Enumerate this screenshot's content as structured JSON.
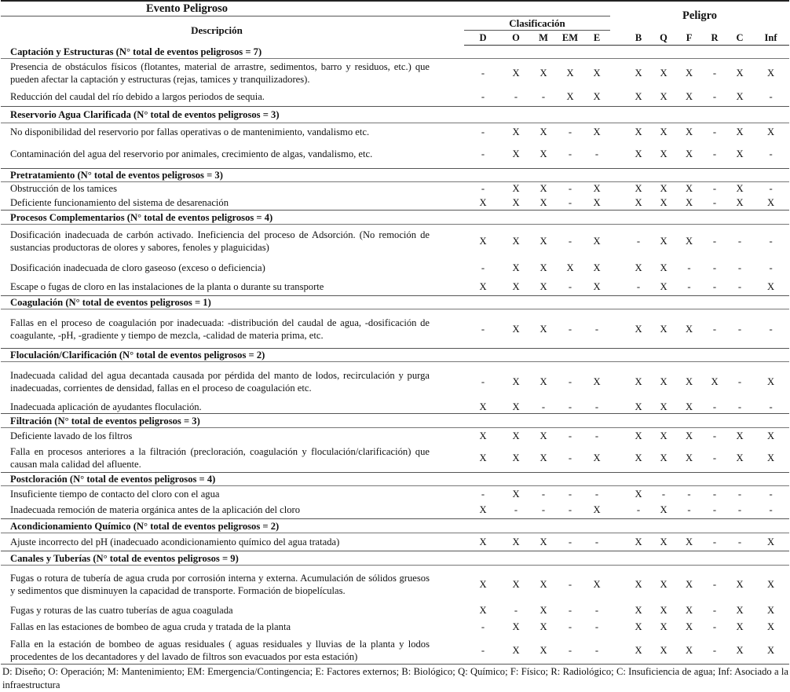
{
  "header": {
    "evento": "Evento Peligroso",
    "descripcion": "Descripción",
    "clasificacion": "Clasificación",
    "peligro": "Peligro",
    "class_codes": [
      "D",
      "O",
      "M",
      "EM",
      "E"
    ],
    "hazard_codes": [
      "B",
      "Q",
      "F",
      "R",
      "C",
      "Inf"
    ]
  },
  "sections": [
    {
      "title": "Captación y Estructuras (N° total de eventos peligrosos = 7)",
      "rows": [
        {
          "desc": "Presencia de obstáculos físicos (flotantes, material de arrastre, sedimentos, barro y residuos, etc.) que pueden afectar la captación y estructuras (rejas, tamices y tranquilizadores).",
          "marks": [
            "-",
            "X",
            "X",
            "X",
            "X",
            "X",
            "X",
            "X",
            "-",
            "X",
            "X"
          ]
        },
        {
          "desc": "Reducción del caudal del río debido a largos periodos de sequia.",
          "marks": [
            "-",
            "-",
            "-",
            "X",
            "X",
            "X",
            "X",
            "X",
            "-",
            "X",
            "-"
          ]
        }
      ]
    },
    {
      "title": "Reservorio Agua Clarificada (N° total de eventos peligrosos = 3)",
      "rows": [
        {
          "desc": "No disponibilidad del reservorio por fallas operativas o de mantenimiento, vandalismo etc.",
          "marks": [
            "-",
            "X",
            "X",
            "-",
            "X",
            "X",
            "X",
            "X",
            "-",
            "X",
            "X"
          ]
        },
        {
          "desc": "Contaminación del agua del reservorio por animales, crecimiento de algas, vandalismo, etc.",
          "marks": [
            "-",
            "X",
            "X",
            "-",
            "-",
            "X",
            "X",
            "X",
            "-",
            "X",
            "-"
          ]
        }
      ]
    },
    {
      "title": "Pretratamiento (N° total de eventos peligrosos = 3)",
      "rows": [
        {
          "desc": "Obstrucción de los tamices",
          "marks": [
            "-",
            "X",
            "X",
            "-",
            "X",
            "X",
            "X",
            "X",
            "-",
            "X",
            "-"
          ]
        },
        {
          "desc": "Deficiente funcionamiento del sistema de desarenación",
          "marks": [
            "X",
            "X",
            "X",
            "-",
            "X",
            "X",
            "X",
            "X",
            "-",
            "X",
            "X"
          ]
        }
      ]
    },
    {
      "title": "Procesos Complementarios (N° total de eventos peligrosos = 4)",
      "rows": [
        {
          "desc": "Dosificación inadecuada de carbón activado. Ineficiencia del proceso de Adsorción. (No remoción de sustancias productoras de olores y sabores, fenoles y plaguicidas)",
          "marks": [
            "X",
            "X",
            "X",
            "-",
            "X",
            "-",
            "X",
            "X",
            "-",
            "-",
            "-"
          ]
        },
        {
          "desc": "Dosificación inadecuada de cloro gaseoso (exceso o deficiencia)",
          "marks": [
            "-",
            "X",
            "X",
            "X",
            "X",
            "X",
            "X",
            "-",
            "-",
            "-",
            "-"
          ]
        },
        {
          "desc": "Escape o fugas de cloro en las instalaciones de la planta o durante su transporte",
          "marks": [
            "X",
            "X",
            "X",
            "-",
            "X",
            "-",
            "X",
            "-",
            "-",
            "-",
            "X"
          ]
        }
      ]
    },
    {
      "title": "Coagulación (N° total de eventos peligrosos = 1)",
      "rows": [
        {
          "desc": "Fallas en el proceso de coagulación por inadecuada: -distribución del caudal de agua, -dosificación de coagulante, -pH, -gradiente y tiempo de mezcla, -calidad de materia prima, etc.",
          "marks": [
            "-",
            "X",
            "X",
            "-",
            "-",
            "X",
            "X",
            "X",
            "-",
            "-",
            "-"
          ]
        }
      ]
    },
    {
      "title": "Floculación/Clarificación (N° total de eventos peligrosos = 2)",
      "rows": [
        {
          "desc": "Inadecuada calidad del agua decantada  causada por pérdida del manto de lodos, recirculación y purga inadecuadas, corrientes de densidad, fallas en el proceso de coagulación etc.",
          "marks": [
            "-",
            "X",
            "X",
            "-",
            "X",
            "X",
            "X",
            "X",
            "X",
            "-",
            "X"
          ]
        },
        {
          "desc": "Inadecuada aplicación de ayudantes floculación.",
          "marks": [
            "X",
            "X",
            "-",
            "-",
            "-",
            "X",
            "X",
            "X",
            "-",
            "-",
            "-"
          ]
        }
      ]
    },
    {
      "title": "Filtración (N° total de eventos peligrosos = 3)",
      "rows": [
        {
          "desc": "Deficiente lavado de los filtros",
          "marks": [
            "X",
            "X",
            "X",
            "-",
            "-",
            "X",
            "X",
            "X",
            "-",
            "X",
            "X"
          ]
        },
        {
          "desc": "Falla en procesos anteriores a la filtración (precloración, coagulación y floculación/clarificación) que causan mala calidad del afluente.",
          "marks": [
            "X",
            "X",
            "X",
            "-",
            "X",
            "X",
            "X",
            "X",
            "-",
            "X",
            "X"
          ]
        }
      ]
    },
    {
      "title": "Postcloración (N° total de eventos peligrosos = 4)",
      "rows": [
        {
          "desc": "Insuficiente tiempo de contacto del cloro con el agua",
          "marks": [
            "-",
            "X",
            "-",
            "-",
            "-",
            "X",
            "-",
            "-",
            "-",
            "-",
            "-"
          ]
        },
        {
          "desc": "Inadecuada remoción de materia orgánica antes de la aplicación del cloro",
          "marks": [
            "X",
            "-",
            "-",
            "-",
            "X",
            "-",
            "X",
            "-",
            "-",
            "-",
            "-"
          ]
        }
      ]
    },
    {
      "title": "Acondicionamiento Químico (N° total de eventos peligrosos = 2)",
      "rows": [
        {
          "desc": "Ajuste incorrecto del pH (inadecuado acondicionamiento químico del agua tratada)",
          "marks": [
            "X",
            "X",
            "X",
            "-",
            "-",
            "X",
            "X",
            "X",
            "-",
            "-",
            "X"
          ]
        }
      ]
    },
    {
      "title": "Canales y Tuberías (N° total de eventos peligrosos = 9)",
      "rows": [
        {
          "desc": "Fugas o rotura de tubería de agua cruda por corrosión interna y externa. Acumulación de sólidos gruesos y sedimentos que disminuyen la capacidad de transporte. Formación de biopelículas.",
          "marks": [
            "X",
            "X",
            "X",
            "-",
            "X",
            "X",
            "X",
            "X",
            "-",
            "X",
            "X"
          ]
        },
        {
          "desc": "Fugas y roturas de las cuatro tuberías de agua coagulada",
          "marks": [
            "X",
            "-",
            "X",
            "-",
            "-",
            "X",
            "X",
            "X",
            "-",
            "X",
            "X"
          ]
        },
        {
          "desc": "Fallas en las estaciones de bombeo de agua cruda y tratada de la planta",
          "marks": [
            "-",
            "X",
            "X",
            "-",
            "-",
            "X",
            "X",
            "X",
            "-",
            "X",
            "X"
          ]
        },
        {
          "desc": "Falla en la estación de bombeo de aguas residuales ( aguas residuales y lluvias de la planta y lodos procedentes de los decantadores y del lavado de filtros son evacuados por  esta estación)",
          "marks": [
            "-",
            "X",
            "X",
            "-",
            "-",
            "X",
            "X",
            "X",
            "-",
            "X",
            "X"
          ]
        }
      ]
    }
  ],
  "footnote": "D: Diseño; O: Operación; M: Mantenimiento; EM: Emergencia/Contingencia; E: Factores externos;  B: Biológico;  Q: Químico; F: Físico; R: Radiológico; C: Insuficiencia de agua; Inf: Asociado a la infraestructura"
}
